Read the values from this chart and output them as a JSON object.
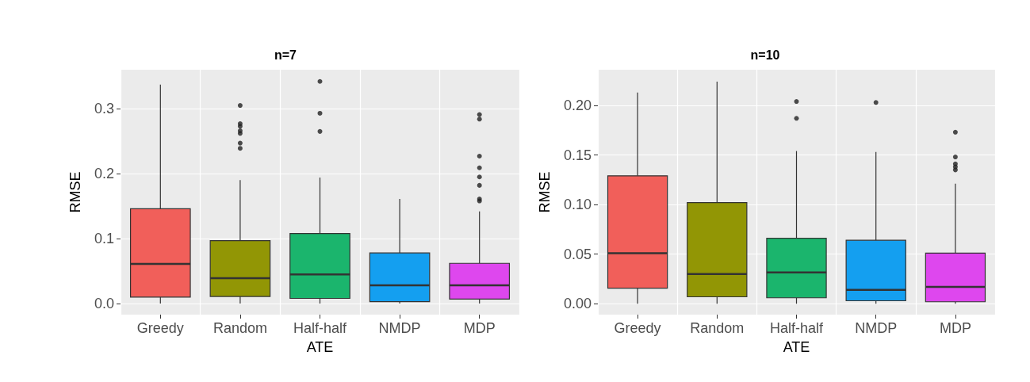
{
  "chart_data": [
    {
      "type": "box",
      "title": "n=7",
      "xlabel": "ATE",
      "ylabel": "RMSE",
      "categories": [
        "Greedy",
        "Random",
        "Half-half",
        "NMDP",
        "MDP"
      ],
      "colors": [
        "#f15f5a",
        "#929605",
        "#1bb56d",
        "#149ff0",
        "#de47ee"
      ],
      "ylim": [
        -0.017,
        0.36
      ],
      "yticks": [
        {
          "value": 0,
          "label": "0.0"
        },
        {
          "value": 0.1,
          "label": "0.1"
        },
        {
          "value": 0.2,
          "label": "0.2"
        },
        {
          "value": 0.3,
          "label": "0.3"
        }
      ],
      "grid": true,
      "boxes": [
        {
          "low": 0,
          "q1": 0.01,
          "median": 0.061,
          "q3": 0.146,
          "high": 0.337
        },
        {
          "low": 0,
          "q1": 0.011,
          "median": 0.039,
          "q3": 0.097,
          "high": 0.19,
          "outliers": [
            0.305,
            0.277,
            0.273,
            0.266,
            0.262,
            0.247,
            0.239
          ]
        },
        {
          "low": 0,
          "q1": 0.008,
          "median": 0.045,
          "q3": 0.108,
          "high": 0.194,
          "outliers": [
            0.342,
            0.293,
            0.265
          ]
        },
        {
          "low": 0,
          "q1": 0.003,
          "median": 0.028,
          "q3": 0.078,
          "high": 0.161
        },
        {
          "low": 0,
          "q1": 0.007,
          "median": 0.028,
          "q3": 0.062,
          "high": 0.142,
          "outliers": [
            0.291,
            0.284,
            0.227,
            0.209,
            0.195,
            0.182,
            0.161,
            0.158
          ]
        }
      ]
    },
    {
      "type": "box",
      "title": "n=10",
      "xlabel": "ATE",
      "ylabel": "RMSE",
      "categories": [
        "Greedy",
        "Random",
        "Half-half",
        "NMDP",
        "MDP"
      ],
      "colors": [
        "#f15f5a",
        "#929605",
        "#1bb56d",
        "#149ff0",
        "#de47ee"
      ],
      "ylim": [
        -0.011,
        0.236
      ],
      "yticks": [
        {
          "value": 0,
          "label": "0.00"
        },
        {
          "value": 0.05,
          "label": "0.05"
        },
        {
          "value": 0.1,
          "label": "0.10"
        },
        {
          "value": 0.15,
          "label": "0.15"
        },
        {
          "value": 0.2,
          "label": "0.20"
        }
      ],
      "grid": true,
      "boxes": [
        {
          "low": 0,
          "q1": 0.0156,
          "median": 0.051,
          "q3": 0.129,
          "high": 0.213
        },
        {
          "low": 0,
          "q1": 0.007,
          "median": 0.03,
          "q3": 0.102,
          "high": 0.224
        },
        {
          "low": 0,
          "q1": 0.006,
          "median": 0.0315,
          "q3": 0.066,
          "high": 0.154,
          "outliers": [
            0.204,
            0.187
          ]
        },
        {
          "low": 0,
          "q1": 0.003,
          "median": 0.014,
          "q3": 0.064,
          "high": 0.153,
          "outliers": [
            0.203
          ]
        },
        {
          "low": 0,
          "q1": 0.002,
          "median": 0.017,
          "q3": 0.051,
          "high": 0.121,
          "outliers": [
            0.173,
            0.148,
            0.141,
            0.138,
            0.135
          ]
        }
      ]
    }
  ]
}
